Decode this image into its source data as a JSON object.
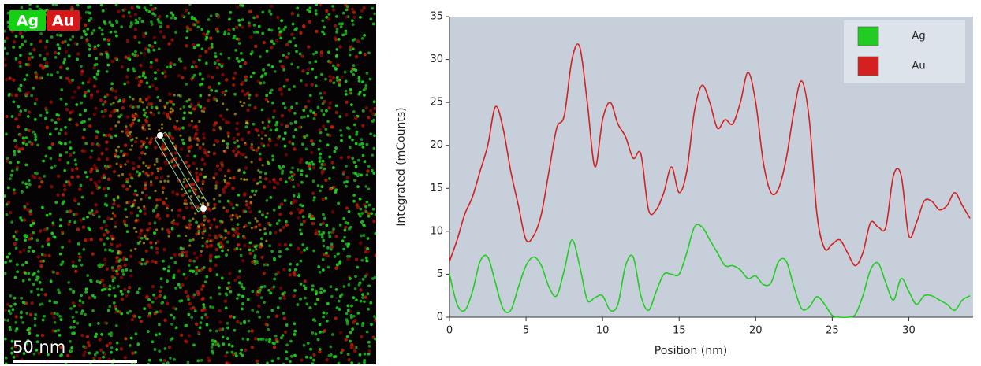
{
  "image": {
    "labels": [
      "Ag",
      "Au"
    ],
    "scale_bar": "50 nm"
  },
  "chart_data": {
    "type": "line",
    "x_label": "Position (nm)",
    "y_label": "Integrated (mCounts)",
    "x": [
      0,
      0.5,
      1,
      1.5,
      2,
      2.5,
      3,
      3.5,
      4,
      4.5,
      5,
      5.5,
      6,
      6.5,
      7,
      7.5,
      8,
      8.5,
      9,
      9.5,
      10,
      10.5,
      11,
      11.5,
      12,
      12.5,
      13,
      13.5,
      14,
      14.5,
      15,
      15.5,
      16,
      16.5,
      17,
      17.5,
      18,
      18.5,
      19,
      19.5,
      20,
      20.5,
      21,
      21.5,
      22,
      22.5,
      23,
      23.5,
      24,
      24.5,
      25,
      25.5,
      26,
      26.5,
      27,
      27.5,
      28,
      28.5,
      29,
      29.5,
      30,
      30.5,
      31,
      31.5,
      32,
      32.5,
      33,
      33.5,
      34
    ],
    "series": [
      {
        "name": "Ag",
        "color": "#22cc22",
        "values": [
          5,
          1.5,
          0.8,
          3,
          6.5,
          7,
          4,
          1,
          0.8,
          3.5,
          6,
          7,
          6,
          3.5,
          2.5,
          5.5,
          9,
          6,
          2,
          2.3,
          2.5,
          0.8,
          1.5,
          6,
          7,
          2.5,
          0.8,
          3,
          5,
          5,
          5,
          7.5,
          10.5,
          10.5,
          9,
          7.5,
          6,
          6,
          5.5,
          4.5,
          4.8,
          3.8,
          4,
          6.5,
          6.5,
          3.5,
          1,
          1.2,
          2.4,
          1.5,
          0.2,
          0,
          0,
          0.3,
          2.5,
          5.5,
          6.3,
          4,
          2,
          4.5,
          3,
          1.5,
          2.5,
          2.5,
          2,
          1.5,
          0.8,
          2,
          2.5
        ]
      },
      {
        "name": "Au",
        "color": "#d42020",
        "values": [
          6.5,
          9,
          12,
          14,
          17,
          20,
          24.5,
          22,
          17,
          13,
          9,
          9.5,
          12,
          17,
          22,
          23.5,
          30,
          31.5,
          25,
          17.5,
          23,
          25,
          22.5,
          21,
          18.5,
          19,
          12.5,
          12.5,
          14.5,
          17.5,
          14.5,
          17,
          24,
          27,
          25,
          22,
          23,
          22.5,
          25,
          28.5,
          25,
          18,
          14.5,
          15,
          18.5,
          24,
          27.5,
          23,
          12,
          8,
          8.5,
          9,
          7.5,
          6,
          7.5,
          11,
          10.5,
          10.5,
          16.5,
          16.5,
          9.5,
          11,
          13.5,
          13.5,
          12.5,
          13,
          14.5,
          13,
          11.5
        ]
      }
    ],
    "xlim": [
      0,
      34.2
    ],
    "xticks": [
      0,
      5,
      10,
      15,
      20,
      25,
      30
    ],
    "ylim": [
      0,
      35
    ],
    "yticks": [
      0,
      5,
      10,
      15,
      20,
      25,
      30,
      35
    ],
    "legend": "upper right"
  }
}
